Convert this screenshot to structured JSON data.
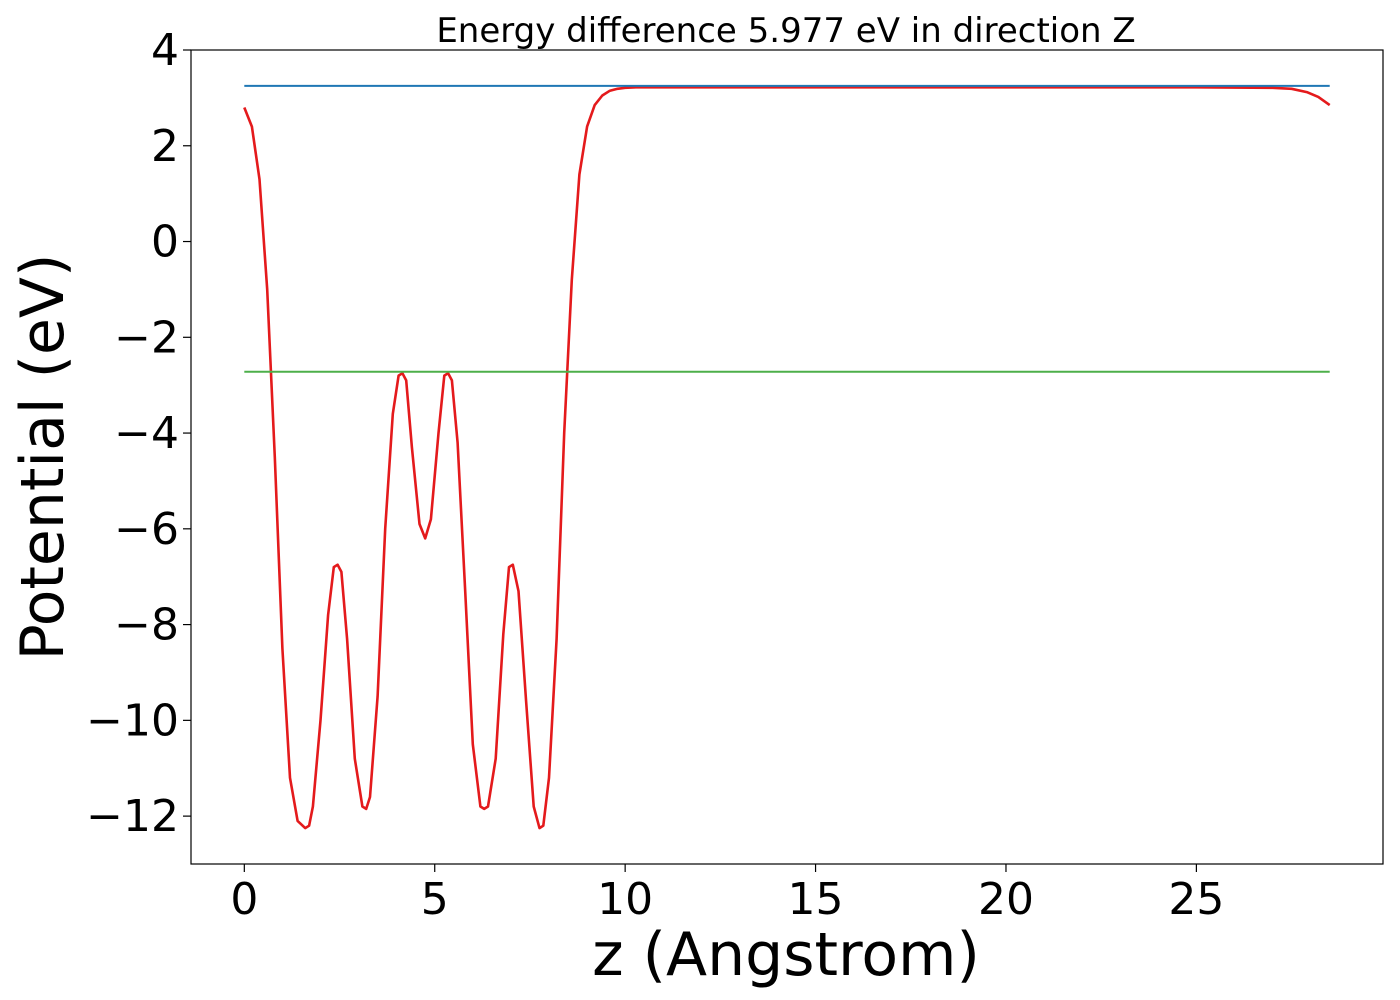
{
  "chart_data": {
    "type": "line",
    "title": "Energy difference 5.977 eV in direction Z",
    "xlabel": "z (Angstrom)",
    "ylabel": "Potential (eV)",
    "xlim": [
      -1.4,
      29.9
    ],
    "ylim": [
      -13,
      4
    ],
    "x_ticks": [
      0,
      5,
      10,
      15,
      20,
      25
    ],
    "y_ticks": [
      4,
      2,
      0,
      -2,
      -4,
      -6,
      -8,
      -10,
      -12
    ],
    "x_tick_labels": [
      "0",
      "5",
      "10",
      "15",
      "20",
      "25"
    ],
    "y_tick_labels": [
      "4",
      "2",
      "0",
      "−2",
      "−4",
      "−6",
      "−8",
      "−10",
      "−12"
    ],
    "grid": false,
    "series": [
      {
        "color": "#e41a1c",
        "x": [
          0,
          0.2,
          0.4,
          0.6,
          0.8,
          1.0,
          1.2,
          1.4,
          1.6,
          1.7,
          1.8,
          2.0,
          2.2,
          2.35,
          2.45,
          2.55,
          2.7,
          2.9,
          3.1,
          3.2,
          3.3,
          3.5,
          3.7,
          3.9,
          4.05,
          4.15,
          4.25,
          4.4,
          4.6,
          4.75,
          4.9,
          5.1,
          5.25,
          5.35,
          5.45,
          5.6,
          5.8,
          6.0,
          6.2,
          6.3,
          6.4,
          6.6,
          6.8,
          6.95,
          7.05,
          7.2,
          7.4,
          7.6,
          7.75,
          7.85,
          8.0,
          8.2,
          8.4,
          8.6,
          8.8,
          9.0,
          9.2,
          9.4,
          9.6,
          9.8,
          10.0,
          10.3,
          10.6,
          11.0,
          12,
          15,
          20,
          25,
          27.0,
          27.5,
          27.9,
          28.2,
          28.5
        ],
        "y": [
          2.8,
          2.4,
          1.3,
          -1.0,
          -4.5,
          -8.5,
          -11.2,
          -12.1,
          -12.25,
          -12.2,
          -11.8,
          -10.0,
          -7.8,
          -6.8,
          -6.75,
          -6.9,
          -8.3,
          -10.8,
          -11.8,
          -11.85,
          -11.6,
          -9.5,
          -6.0,
          -3.6,
          -2.8,
          -2.75,
          -2.9,
          -4.3,
          -5.9,
          -6.2,
          -5.8,
          -4.0,
          -2.8,
          -2.75,
          -2.9,
          -4.2,
          -7.3,
          -10.5,
          -11.8,
          -11.85,
          -11.8,
          -10.8,
          -8.2,
          -6.8,
          -6.75,
          -7.3,
          -9.6,
          -11.8,
          -12.25,
          -12.2,
          -11.2,
          -8.3,
          -4.0,
          -0.8,
          1.4,
          2.4,
          2.85,
          3.05,
          3.15,
          3.19,
          3.21,
          3.22,
          3.22,
          3.22,
          3.22,
          3.22,
          3.22,
          3.22,
          3.21,
          3.19,
          3.12,
          3.02,
          2.85
        ]
      },
      {
        "color": "#1f77b4",
        "x": [
          0,
          28.5
        ],
        "y": [
          3.25,
          3.25
        ]
      },
      {
        "color": "#4daf4a",
        "x": [
          0,
          28.5
        ],
        "y": [
          -2.72,
          -2.72
        ]
      }
    ]
  }
}
